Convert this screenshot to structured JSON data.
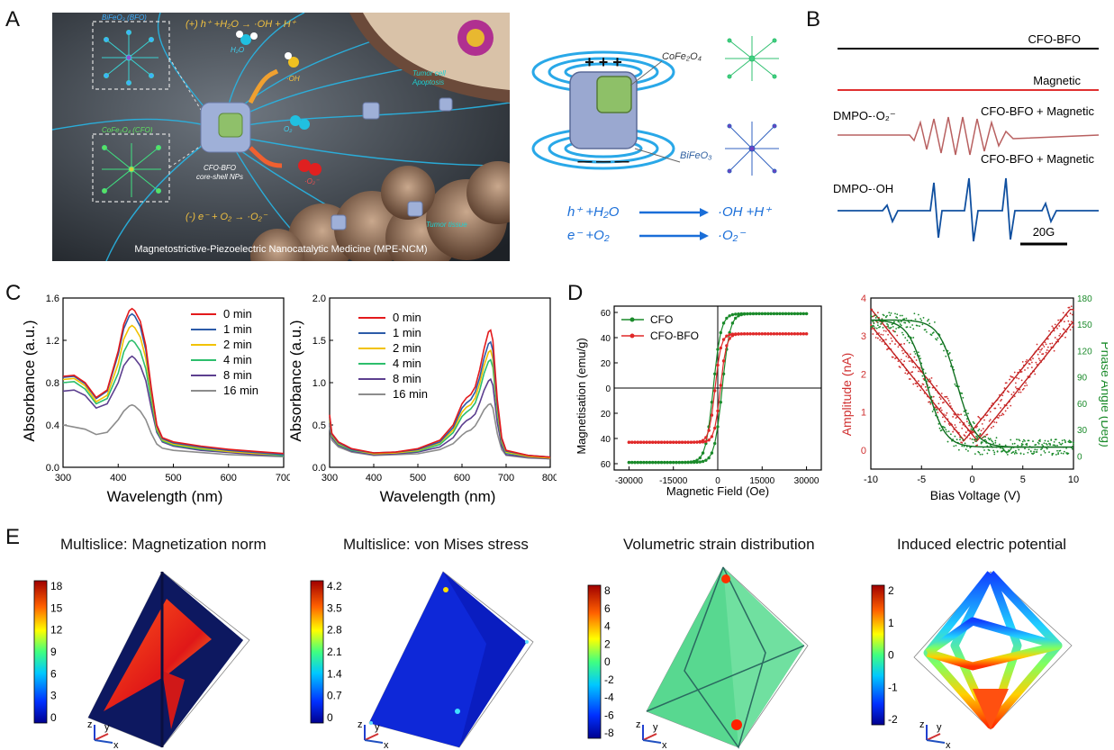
{
  "panel_labels": [
    "A",
    "B",
    "C",
    "D",
    "E"
  ],
  "panelA": {
    "schematic": {
      "reaction_top": "(+) h⁺ +H₂O   →   ·OH + H⁺",
      "reaction_bottom": "(-) e⁻ + O₂   →   ·O₂⁻",
      "bfo_label": "BiFeO₃ (BFO)",
      "cfo_label": "CoFe₂O₄ (CFO)",
      "np_label_1": "CFO-BFO",
      "np_label_2": "core-shell NPs",
      "h2o": "H₂O",
      "oh": "·OH",
      "o2": "O₂",
      "o2rad": "·O₂⁻",
      "tumor_cell_1": "Tumor cell",
      "tumor_cell_2": "Apoptosis",
      "tumor_tissue": "Tumor tissue",
      "caption": "Magnetostrictive-Piezoelectric Nanocatalytic Medicine (MPE-NCM)"
    },
    "mechanism": {
      "cfo": "CoFe₂O₄",
      "bfo": "BiFeO₃",
      "plus": "+ + +",
      "minus": "— — —",
      "eq1_left": "h⁺ +H₂O",
      "eq1_right": "·OH +H⁺",
      "eq2_left": "e⁻ +O₂",
      "eq2_right": "·O₂⁻"
    }
  },
  "panelB": {
    "traces": [
      {
        "label": "CFO-BFO",
        "color": "#000000"
      },
      {
        "label": "Magnetic",
        "color": "#e03030"
      },
      {
        "label": "CFO-BFO + Magnetic",
        "tag": "DMPO-·O₂⁻",
        "color": "#b86060"
      },
      {
        "label": "CFO-BFO + Magnetic",
        "tag": "DMPO-·OH",
        "color": "#1050a0"
      }
    ],
    "scale_bar": "20G"
  },
  "chart_data": [
    {
      "id": "c1",
      "type": "line",
      "xlabel": "Wavelength (nm)",
      "ylabel": "Absorbance (a.u.)",
      "xlim": [
        300,
        700
      ],
      "ylim": [
        0,
        1.6
      ],
      "xticks": [
        300,
        400,
        500,
        600,
        700
      ],
      "yticks": [
        0.0,
        0.4,
        0.8,
        1.2,
        1.6
      ],
      "ytick_labels": [
        "0.0",
        "0.4",
        "0.8",
        "1.2",
        "1.6"
      ],
      "x": [
        300,
        320,
        340,
        360,
        380,
        400,
        410,
        420,
        425,
        430,
        440,
        450,
        460,
        470,
        480,
        500,
        550,
        600,
        650,
        700
      ],
      "series": [
        {
          "name": "0 min",
          "color": "#e31a1c",
          "values": [
            0.86,
            0.87,
            0.8,
            0.66,
            0.73,
            1.1,
            1.35,
            1.48,
            1.5,
            1.48,
            1.38,
            1.15,
            0.75,
            0.4,
            0.28,
            0.24,
            0.2,
            0.17,
            0.15,
            0.13
          ]
        },
        {
          "name": "1 min",
          "color": "#2c5ba8",
          "values": [
            0.85,
            0.86,
            0.79,
            0.65,
            0.72,
            1.07,
            1.31,
            1.43,
            1.45,
            1.43,
            1.33,
            1.11,
            0.73,
            0.39,
            0.27,
            0.23,
            0.19,
            0.16,
            0.14,
            0.12
          ]
        },
        {
          "name": "2 min",
          "color": "#f2c200",
          "values": [
            0.83,
            0.84,
            0.77,
            0.62,
            0.68,
            0.98,
            1.21,
            1.32,
            1.34,
            1.32,
            1.23,
            1.03,
            0.69,
            0.37,
            0.26,
            0.22,
            0.18,
            0.15,
            0.13,
            0.12
          ]
        },
        {
          "name": "4 min",
          "color": "#2dbe6c",
          "values": [
            0.8,
            0.81,
            0.74,
            0.6,
            0.65,
            0.89,
            1.09,
            1.19,
            1.2,
            1.18,
            1.1,
            0.93,
            0.63,
            0.35,
            0.25,
            0.21,
            0.17,
            0.15,
            0.13,
            0.11
          ]
        },
        {
          "name": "8 min",
          "color": "#5c3f8f",
          "values": [
            0.72,
            0.73,
            0.68,
            0.56,
            0.6,
            0.8,
            0.96,
            1.03,
            1.05,
            1.03,
            0.96,
            0.82,
            0.56,
            0.33,
            0.24,
            0.2,
            0.16,
            0.14,
            0.12,
            0.11
          ]
        },
        {
          "name": "16 min",
          "color": "#8c8c8c",
          "values": [
            0.4,
            0.38,
            0.36,
            0.31,
            0.33,
            0.45,
            0.53,
            0.58,
            0.59,
            0.58,
            0.53,
            0.45,
            0.32,
            0.22,
            0.18,
            0.16,
            0.14,
            0.12,
            0.11,
            0.1
          ]
        }
      ]
    },
    {
      "id": "c2",
      "type": "line",
      "xlabel": "Wavelength (nm)",
      "ylabel": "Absorbance (a.u.)",
      "xlim": [
        300,
        800
      ],
      "ylim": [
        0,
        2.0
      ],
      "xticks": [
        300,
        400,
        500,
        600,
        700,
        800
      ],
      "yticks": [
        0.0,
        0.5,
        1.0,
        1.5,
        2.0
      ],
      "ytick_labels": [
        "0.0",
        "0.5",
        "1.0",
        "1.5",
        "2.0"
      ],
      "x": [
        300,
        305,
        320,
        350,
        400,
        450,
        500,
        550,
        580,
        600,
        610,
        620,
        630,
        640,
        650,
        660,
        665,
        670,
        680,
        690,
        700,
        750,
        800
      ],
      "series": [
        {
          "name": "0 min",
          "color": "#e31a1c",
          "values": [
            0.62,
            0.4,
            0.3,
            0.22,
            0.17,
            0.18,
            0.22,
            0.32,
            0.5,
            0.75,
            0.82,
            0.86,
            0.95,
            1.15,
            1.4,
            1.6,
            1.62,
            1.5,
            0.8,
            0.35,
            0.2,
            0.14,
            0.12
          ]
        },
        {
          "name": "1 min",
          "color": "#2c5ba8",
          "values": [
            0.6,
            0.39,
            0.29,
            0.21,
            0.17,
            0.18,
            0.21,
            0.3,
            0.47,
            0.7,
            0.76,
            0.8,
            0.89,
            1.06,
            1.29,
            1.46,
            1.48,
            1.38,
            0.74,
            0.33,
            0.19,
            0.14,
            0.12
          ]
        },
        {
          "name": "2 min",
          "color": "#f2c200",
          "values": [
            0.58,
            0.38,
            0.28,
            0.21,
            0.16,
            0.17,
            0.2,
            0.29,
            0.44,
            0.65,
            0.71,
            0.74,
            0.82,
            0.99,
            1.2,
            1.36,
            1.38,
            1.28,
            0.69,
            0.31,
            0.18,
            0.13,
            0.11
          ]
        },
        {
          "name": "4 min",
          "color": "#2dbe6c",
          "values": [
            0.56,
            0.37,
            0.27,
            0.2,
            0.16,
            0.17,
            0.19,
            0.27,
            0.41,
            0.6,
            0.65,
            0.69,
            0.76,
            0.91,
            1.11,
            1.25,
            1.27,
            1.18,
            0.64,
            0.29,
            0.17,
            0.13,
            0.11
          ]
        },
        {
          "name": "8 min",
          "color": "#5c3f8f",
          "values": [
            0.52,
            0.35,
            0.26,
            0.19,
            0.15,
            0.16,
            0.18,
            0.24,
            0.35,
            0.5,
            0.55,
            0.58,
            0.63,
            0.76,
            0.91,
            1.02,
            1.04,
            0.97,
            0.53,
            0.25,
            0.15,
            0.12,
            0.1
          ]
        },
        {
          "name": "16 min",
          "color": "#8c8c8c",
          "values": [
            0.48,
            0.32,
            0.24,
            0.18,
            0.14,
            0.15,
            0.16,
            0.21,
            0.28,
            0.38,
            0.42,
            0.44,
            0.49,
            0.58,
            0.68,
            0.74,
            0.75,
            0.7,
            0.4,
            0.21,
            0.14,
            0.11,
            0.1
          ]
        }
      ]
    },
    {
      "id": "c3",
      "type": "scatter",
      "xlabel": "Magnetic Field (Oe)",
      "ylabel": "Magnetisation (emu/g)",
      "xlim": [
        -35000,
        35000
      ],
      "ylim": [
        -65,
        65
      ],
      "xticks": [
        -30000,
        -15000,
        0,
        15000,
        30000
      ],
      "yticks": [
        -60,
        -40,
        -20,
        0,
        20,
        40,
        60
      ],
      "ytick_labels": [
        "60",
        "40",
        "20",
        "0",
        "20",
        "40",
        "60"
      ],
      "series": [
        {
          "name": "CFO",
          "color": "#1a8a2a",
          "Ms": 59,
          "Hc": 1500,
          "Hs": 2600
        },
        {
          "name": "CFO-BFO",
          "color": "#e02828",
          "Ms": 43,
          "Hc": 900,
          "Hs": 2000
        }
      ]
    },
    {
      "id": "c4",
      "type": "scatter",
      "xlabel": "Bias Voltage (V)",
      "ylabel": "Amplitude (nA)",
      "ylabel2": "Phase Angle (Deg)",
      "xlim": [
        -10,
        10
      ],
      "ylim": [
        -0.5,
        4
      ],
      "ylim2": [
        -15,
        180
      ],
      "xticks": [
        -10,
        -5,
        0,
        5,
        10
      ],
      "yticks": [
        0,
        1,
        2,
        3,
        4
      ],
      "yticks2": [
        0,
        30,
        60,
        90,
        120,
        150,
        180
      ],
      "series": [
        {
          "name": "Amplitude",
          "color": "#d03030",
          "axis": "left"
        },
        {
          "name": "Phase",
          "color": "#1a8a2a",
          "axis": "right"
        }
      ]
    }
  ],
  "c1_legend": [
    "0 min",
    "1 min",
    "2 min",
    "4 min",
    "8 min",
    "16 min"
  ],
  "c2_legend": [
    "0 min",
    "1 min",
    "2 min",
    "4 min",
    "8 min",
    "16 min"
  ],
  "c3_legend": [
    "CFO",
    "CFO-BFO"
  ],
  "panelE": {
    "sims": [
      {
        "title": "Multislice: Magnetization norm",
        "ticks": [
          "18",
          "15",
          "12",
          "9",
          "6",
          "3",
          "0"
        ],
        "axes": [
          "z",
          "y",
          "x"
        ]
      },
      {
        "title": "Multislice: von Mises stress",
        "ticks": [
          "4.2",
          "3.5",
          "2.8",
          "2.1",
          "1.4",
          "0.7",
          "0"
        ],
        "axes": [
          "z",
          "y",
          "x"
        ]
      },
      {
        "title": "Volumetric strain distribution",
        "ticks": [
          "8",
          "6",
          "4",
          "2",
          "0",
          "-2",
          "-4",
          "-6",
          "-8"
        ],
        "axes": [
          "z",
          "y",
          "x"
        ]
      },
      {
        "title": "Induced electric potential",
        "ticks": [
          "2",
          "1",
          "0",
          "-1",
          "-2"
        ],
        "axes": [
          "z",
          "y",
          "x"
        ]
      }
    ]
  }
}
